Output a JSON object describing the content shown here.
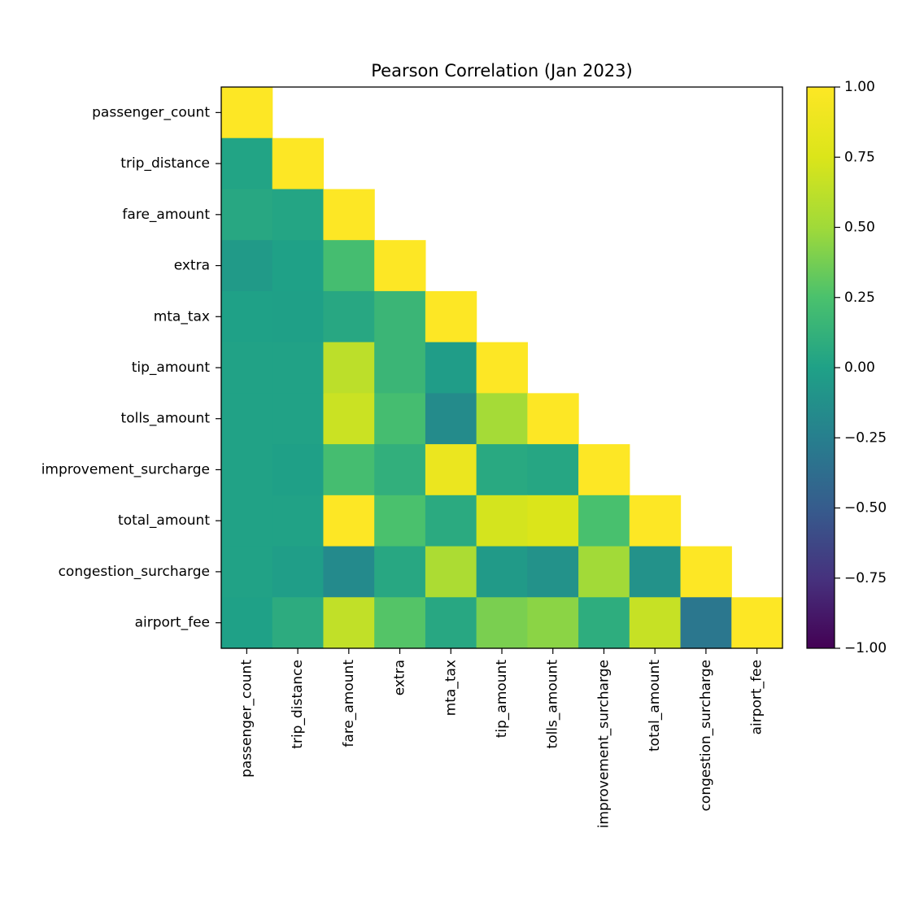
{
  "chart_data": {
    "type": "heatmap",
    "title": "Pearson Correlation (Jan 2023)",
    "variables": [
      "passenger_count",
      "trip_distance",
      "fare_amount",
      "extra",
      "mta_tax",
      "tip_amount",
      "tolls_amount",
      "improvement_surcharge",
      "total_amount",
      "congestion_surcharge",
      "airport_fee"
    ],
    "matrix_lower": [
      [
        1.0
      ],
      [
        0.02,
        1.0
      ],
      [
        0.05,
        0.03,
        1.0
      ],
      [
        -0.05,
        0.0,
        0.22,
        1.0
      ],
      [
        0.0,
        -0.01,
        0.05,
        0.16,
        1.0
      ],
      [
        0.01,
        0.01,
        0.62,
        0.16,
        -0.03,
        1.0
      ],
      [
        0.01,
        0.01,
        0.68,
        0.22,
        -0.16,
        0.52,
        1.0
      ],
      [
        0.01,
        -0.01,
        0.22,
        0.11,
        0.87,
        0.06,
        0.04,
        1.0
      ],
      [
        0.01,
        0.01,
        1.0,
        0.25,
        0.07,
        0.72,
        0.75,
        0.24,
        1.0
      ],
      [
        0.01,
        -0.02,
        -0.17,
        0.05,
        0.55,
        -0.05,
        -0.11,
        0.51,
        -0.11,
        1.0
      ],
      [
        0.0,
        0.08,
        0.64,
        0.28,
        0.05,
        0.39,
        0.44,
        0.09,
        0.66,
        -0.31,
        1.0
      ]
    ],
    "colormap": "viridis",
    "vmin": -1.0,
    "vmax": 1.0,
    "colorbar_ticks": [
      "1.00",
      "0.75",
      "0.50",
      "0.25",
      "0.00",
      "−0.25",
      "−0.50",
      "−0.75",
      "−1.00"
    ]
  }
}
